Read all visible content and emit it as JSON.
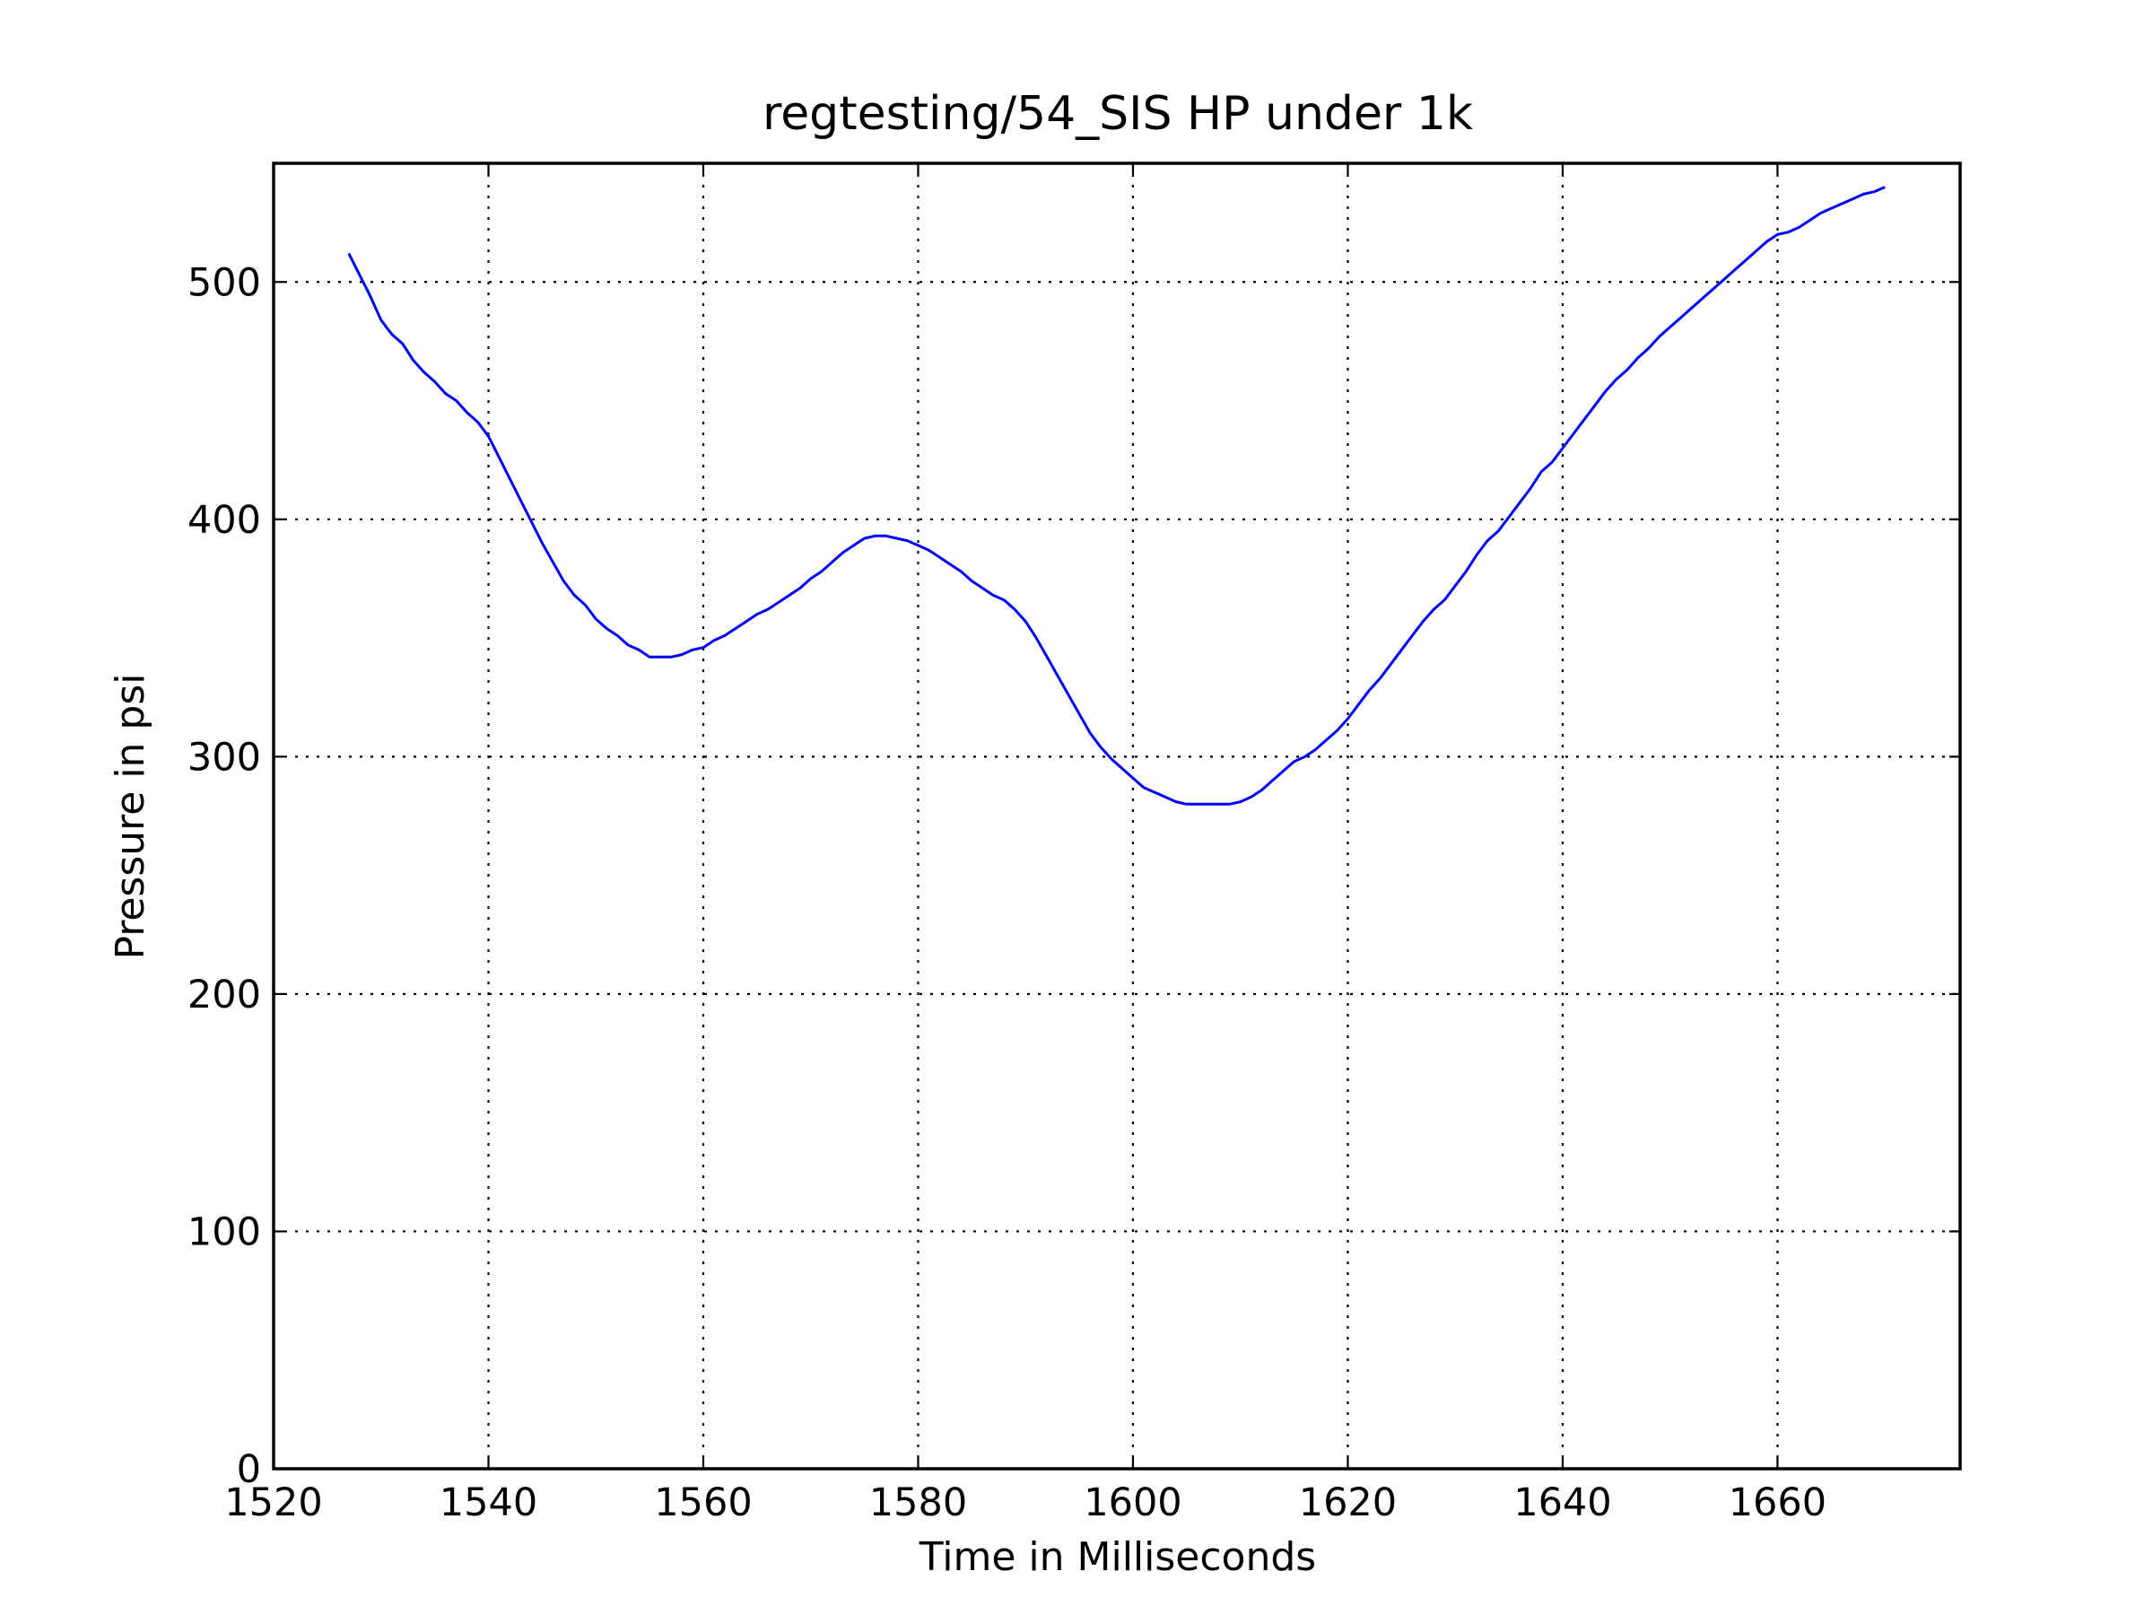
{
  "chart_data": {
    "type": "line",
    "title": "regtesting/54_SIS HP under 1k",
    "xlabel": "Time in Milliseconds",
    "ylabel": "Pressure in psi",
    "xlim": [
      1520,
      1677
    ],
    "ylim": [
      0,
      550
    ],
    "xticks": [
      1520,
      1540,
      1560,
      1580,
      1600,
      1620,
      1640,
      1660
    ],
    "yticks": [
      0,
      100,
      200,
      300,
      400,
      500
    ],
    "grid": true,
    "line_color": "#0000ff",
    "series": [
      {
        "x": [
          1527,
          1528,
          1529,
          1530,
          1531,
          1532,
          1533,
          1534,
          1535,
          1536,
          1537,
          1538,
          1539,
          1540,
          1541,
          1542,
          1543,
          1544,
          1545,
          1546,
          1547,
          1548,
          1549,
          1550,
          1551,
          1552,
          1553,
          1554,
          1555,
          1556,
          1557,
          1558,
          1559,
          1560,
          1561,
          1562,
          1563,
          1564,
          1565,
          1566,
          1567,
          1568,
          1569,
          1570,
          1571,
          1572,
          1573,
          1574,
          1575,
          1576,
          1577,
          1578,
          1579,
          1580,
          1581,
          1582,
          1583,
          1584,
          1585,
          1586,
          1587,
          1588,
          1589,
          1590,
          1591,
          1592,
          1593,
          1594,
          1595,
          1596,
          1597,
          1598,
          1599,
          1600,
          1601,
          1602,
          1603,
          1604,
          1605,
          1606,
          1607,
          1608,
          1609,
          1610,
          1611,
          1612,
          1613,
          1614,
          1615,
          1616,
          1617,
          1618,
          1619,
          1620,
          1621,
          1622,
          1623,
          1624,
          1625,
          1626,
          1627,
          1628,
          1629,
          1630,
          1631,
          1632,
          1633,
          1634,
          1635,
          1636,
          1637,
          1638,
          1639,
          1640,
          1641,
          1642,
          1643,
          1644,
          1645,
          1646,
          1647,
          1648,
          1649,
          1650,
          1651,
          1652,
          1653,
          1654,
          1655,
          1656,
          1657,
          1658,
          1659,
          1660,
          1661,
          1662,
          1663,
          1664,
          1665,
          1666,
          1667,
          1668,
          1669,
          1670
        ],
        "y": [
          512,
          503,
          494,
          484,
          478,
          474,
          467,
          462,
          458,
          453,
          450,
          445,
          441,
          435,
          426,
          417,
          408,
          399,
          390,
          382,
          374,
          368,
          364,
          358,
          354,
          351,
          347,
          345,
          342,
          342,
          342,
          343,
          345,
          346,
          349,
          351,
          354,
          357,
          360,
          362,
          365,
          368,
          371,
          375,
          378,
          382,
          386,
          389,
          392,
          393,
          393,
          392,
          391,
          389,
          387,
          384,
          381,
          378,
          374,
          371,
          368,
          366,
          362,
          357,
          350,
          342,
          334,
          326,
          318,
          310,
          304,
          299,
          295,
          291,
          287,
          285,
          283,
          281,
          280,
          280,
          280,
          280,
          280,
          281,
          283,
          286,
          290,
          294,
          298,
          300,
          303,
          307,
          311,
          316,
          322,
          328,
          333,
          339,
          345,
          351,
          357,
          362,
          366,
          372,
          378,
          385,
          391,
          395,
          401,
          407,
          413,
          420,
          424,
          430,
          436,
          442,
          448,
          454,
          459,
          463,
          468,
          472,
          477,
          481,
          485,
          489,
          493,
          497,
          501,
          505,
          509,
          513,
          517,
          520,
          521,
          523,
          526,
          529,
          531,
          533,
          535,
          537,
          538,
          540
        ]
      }
    ]
  }
}
